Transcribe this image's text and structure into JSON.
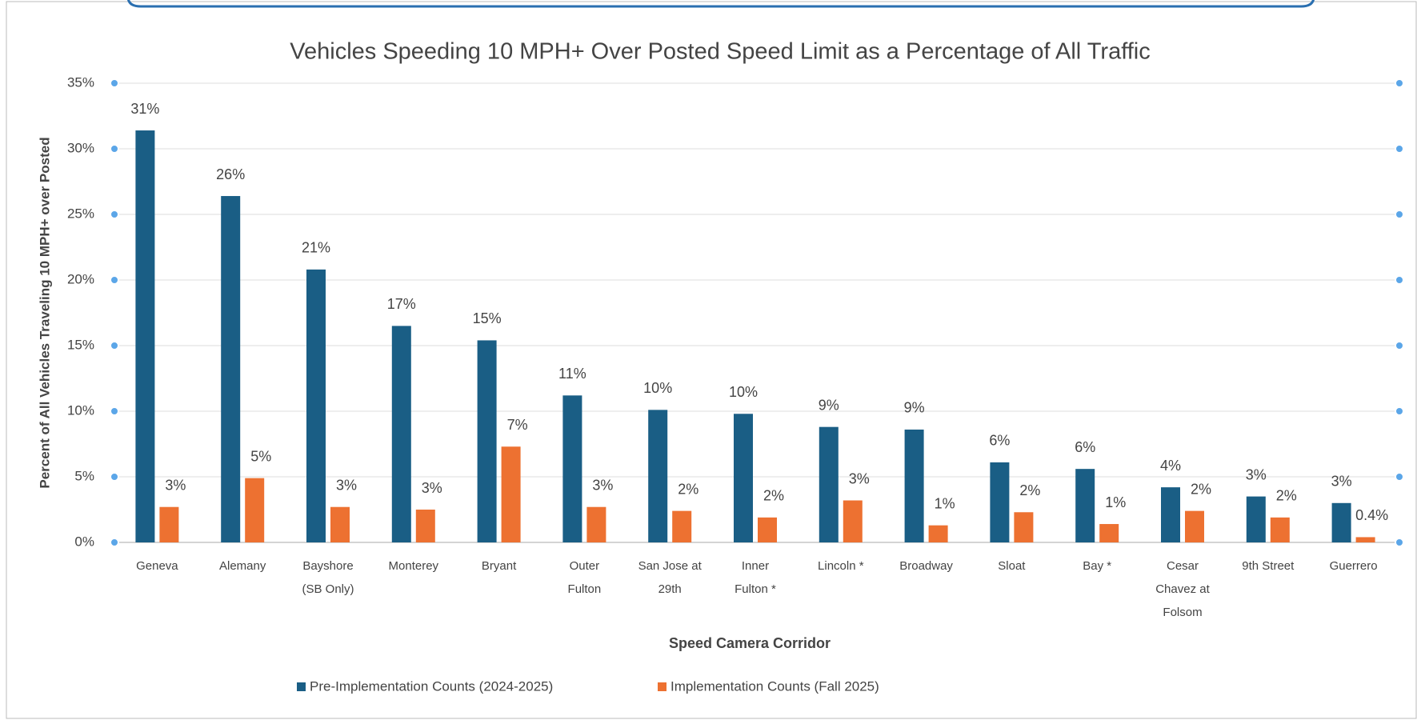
{
  "chart_data": {
    "type": "bar",
    "title": "Vehicles Speeding 10 MPH+ Over Posted Speed Limit as a Percentage of All Traffic",
    "y_label": "Percent of All Vehicles Traveling 10 MPH+ over  Posted",
    "x_label": "Speed Camera Corridor",
    "categories": [
      "Geneva",
      "Alemany",
      "Bayshore (SB Only)",
      "Monterey",
      "Bryant",
      "Outer Fulton",
      "San Jose at 29th",
      "Inner Fulton *",
      "Lincoln *",
      "Broadway",
      "Sloat",
      "Bay  *",
      "Cesar Chavez at Folsom",
      "9th Street",
      "Guerrero"
    ],
    "series": [
      {
        "name": "Pre-Implementation Counts (2024-2025)",
        "color": "#1a5e85",
        "values": [
          31.4,
          26.4,
          20.8,
          16.5,
          15.4,
          11.2,
          10.1,
          9.8,
          8.8,
          8.6,
          6.1,
          5.6,
          4.2,
          3.5,
          3.0
        ],
        "value_labels": [
          "31%",
          "26%",
          "21%",
          "17%",
          "15%",
          "11%",
          "10%",
          "10%",
          "9%",
          "9%",
          "6%",
          "6%",
          "4%",
          "3%",
          "3%"
        ]
      },
      {
        "name": "Implementation Counts (Fall 2025)",
        "color": "#ed7131",
        "values": [
          2.7,
          4.9,
          2.7,
          2.5,
          7.3,
          2.7,
          2.4,
          1.9,
          3.2,
          1.3,
          2.3,
          1.4,
          2.4,
          1.9,
          0.4
        ],
        "value_labels": [
          "3%",
          "5%",
          "3%",
          "3%",
          "7%",
          "3%",
          "2%",
          "2%",
          "3%",
          "1%",
          "2%",
          "1%",
          "2%",
          "2%",
          "0.4%"
        ]
      }
    ],
    "ylim": [
      0,
      35
    ],
    "yticks": [
      {
        "value": 0,
        "label": "0%"
      },
      {
        "value": 5,
        "label": "5%"
      },
      {
        "value": 10,
        "label": "10%"
      },
      {
        "value": 15,
        "label": "15%"
      },
      {
        "value": 20,
        "label": "20%"
      },
      {
        "value": 25,
        "label": "25%"
      },
      {
        "value": 30,
        "label": "30%"
      },
      {
        "value": 35,
        "label": "35%"
      }
    ],
    "grid": true
  }
}
